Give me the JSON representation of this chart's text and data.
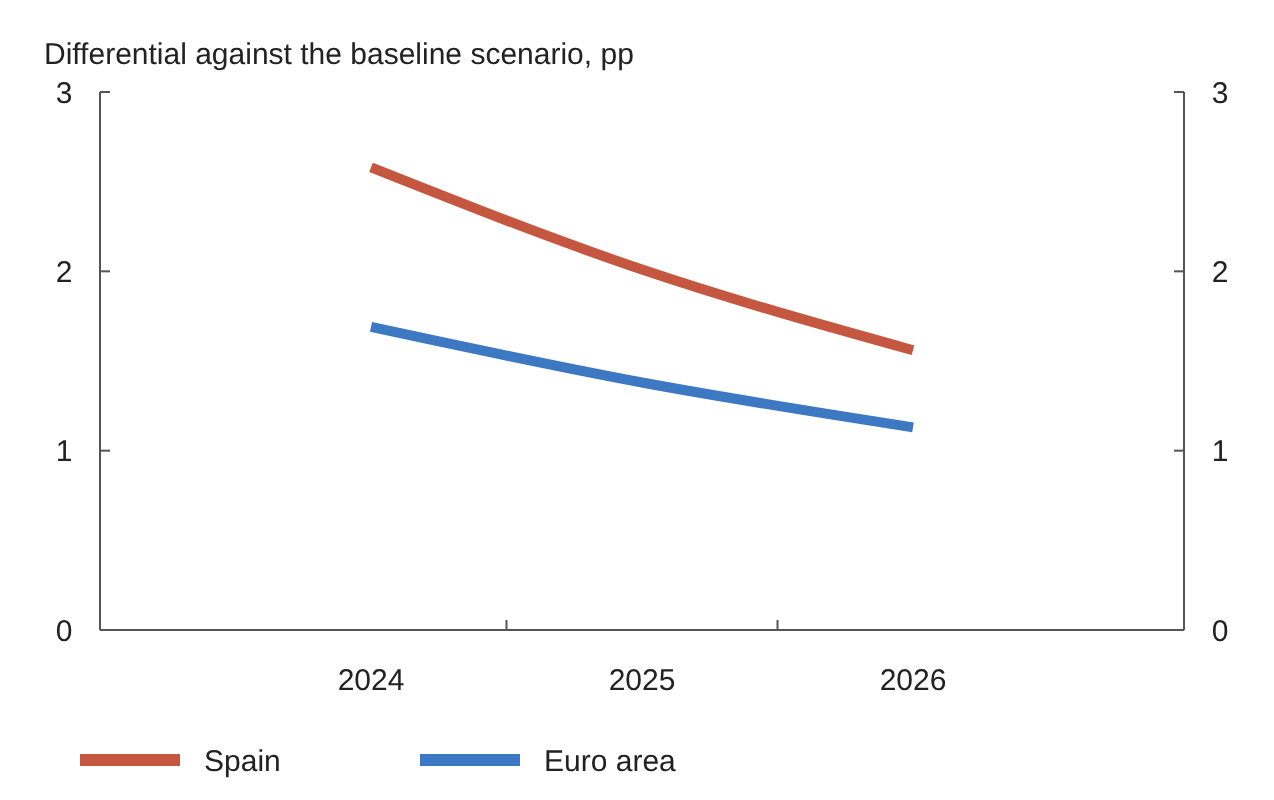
{
  "chart_data": {
    "type": "line",
    "title": "Differential against the baseline scenario, pp",
    "categories": [
      "2024",
      "2025",
      "2026"
    ],
    "series": [
      {
        "name": "Spain",
        "color": "#c5563f",
        "values": [
          2.58,
          2.01,
          1.56
        ]
      },
      {
        "name": "Euro area",
        "color": "#3d78c2",
        "values": [
          1.69,
          1.38,
          1.13
        ]
      }
    ],
    "ylim": [
      0,
      3
    ],
    "yticks": [
      0,
      1,
      2,
      3
    ],
    "y2lim": [
      0,
      3
    ],
    "y2ticks": [
      0,
      1,
      2,
      3
    ],
    "grid": false,
    "legend": "bottom",
    "marker": "none",
    "line_style": "solid"
  }
}
